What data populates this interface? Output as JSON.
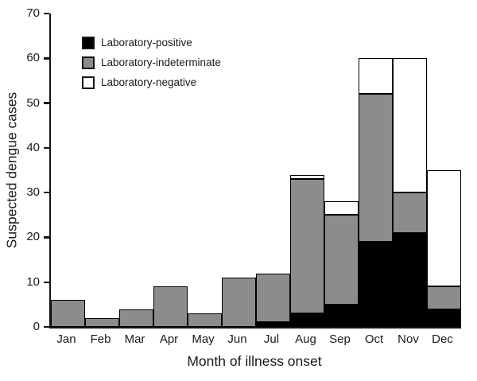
{
  "chart_data": {
    "type": "bar",
    "stacked": true,
    "title": "",
    "xlabel": "Month of illness onset",
    "ylabel": "Suspected dengue cases",
    "categories": [
      "Jan",
      "Feb",
      "Mar",
      "Apr",
      "May",
      "Jun",
      "Jul",
      "Aug",
      "Sep",
      "Oct",
      "Nov",
      "Dec"
    ],
    "series": [
      {
        "name": "Laboratory-positive",
        "color": "#000000",
        "values": [
          0,
          0,
          0,
          0,
          0,
          0,
          1,
          3,
          5,
          19,
          21,
          4
        ]
      },
      {
        "name": "Laboratory-indeterminate",
        "color": "#8c8c8c",
        "values": [
          6,
          2,
          4,
          9,
          3,
          11,
          11,
          30,
          20,
          33,
          9,
          5
        ]
      },
      {
        "name": "Laboratory-negative",
        "color": "#ffffff",
        "values": [
          0,
          0,
          0,
          0,
          0,
          0,
          0,
          1,
          3,
          8,
          30,
          26
        ]
      }
    ],
    "totals": [
      6,
      2,
      4,
      9,
      3,
      11,
      12,
      34,
      28,
      60,
      60,
      35
    ],
    "ylim": [
      0,
      70
    ],
    "yticks": [
      0,
      10,
      20,
      30,
      40,
      50,
      60,
      70
    ],
    "grid": false,
    "legend_position": "top-left",
    "bar_border_color": "#000000",
    "axis_color": "#141414"
  }
}
